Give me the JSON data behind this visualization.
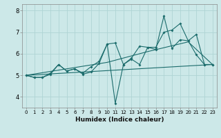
{
  "xlabel": "Humidex (Indice chaleur)",
  "bg_color": "#cce8e8",
  "line_color": "#1a6b6b",
  "grid_color": "#afd4d4",
  "xlim": [
    -0.5,
    23.5
  ],
  "ylim": [
    3.5,
    8.3
  ],
  "yticks": [
    4,
    5,
    6,
    7,
    8
  ],
  "xticks": [
    0,
    1,
    2,
    3,
    4,
    5,
    6,
    7,
    8,
    9,
    10,
    11,
    12,
    13,
    14,
    15,
    16,
    17,
    18,
    19,
    20,
    21,
    22,
    23
  ],
  "lines": [
    {
      "x": [
        0,
        1,
        2,
        3,
        4,
        5,
        6,
        7,
        8,
        9,
        10,
        11,
        12,
        13,
        14,
        15,
        16,
        17,
        18,
        19,
        20,
        21,
        22,
        23
      ],
      "y": [
        5.0,
        4.9,
        4.9,
        5.05,
        5.5,
        5.2,
        5.3,
        5.05,
        5.15,
        5.55,
        6.45,
        3.7,
        5.5,
        5.75,
        5.5,
        6.3,
        6.2,
        7.75,
        6.25,
        6.65,
        6.6,
        5.95,
        5.5,
        5.5
      ],
      "marker": true
    },
    {
      "x": [
        0,
        1,
        2,
        3,
        4,
        5,
        6,
        7,
        8,
        9,
        10,
        11,
        12,
        13,
        14,
        15,
        16,
        17,
        18,
        19,
        20,
        21,
        22,
        23
      ],
      "y": [
        5.0,
        4.9,
        4.9,
        5.1,
        5.5,
        5.2,
        5.3,
        5.1,
        5.4,
        5.65,
        6.45,
        6.5,
        5.5,
        5.8,
        6.35,
        6.3,
        6.3,
        7.0,
        7.1,
        7.4,
        6.6,
        6.9,
        5.5,
        5.5
      ],
      "marker": true
    },
    {
      "x": [
        0,
        23
      ],
      "y": [
        5.0,
        5.5
      ],
      "marker": false
    },
    {
      "x": [
        0,
        10,
        15,
        20,
        23
      ],
      "y": [
        5.0,
        5.6,
        6.1,
        6.55,
        5.5
      ],
      "marker": false
    }
  ]
}
